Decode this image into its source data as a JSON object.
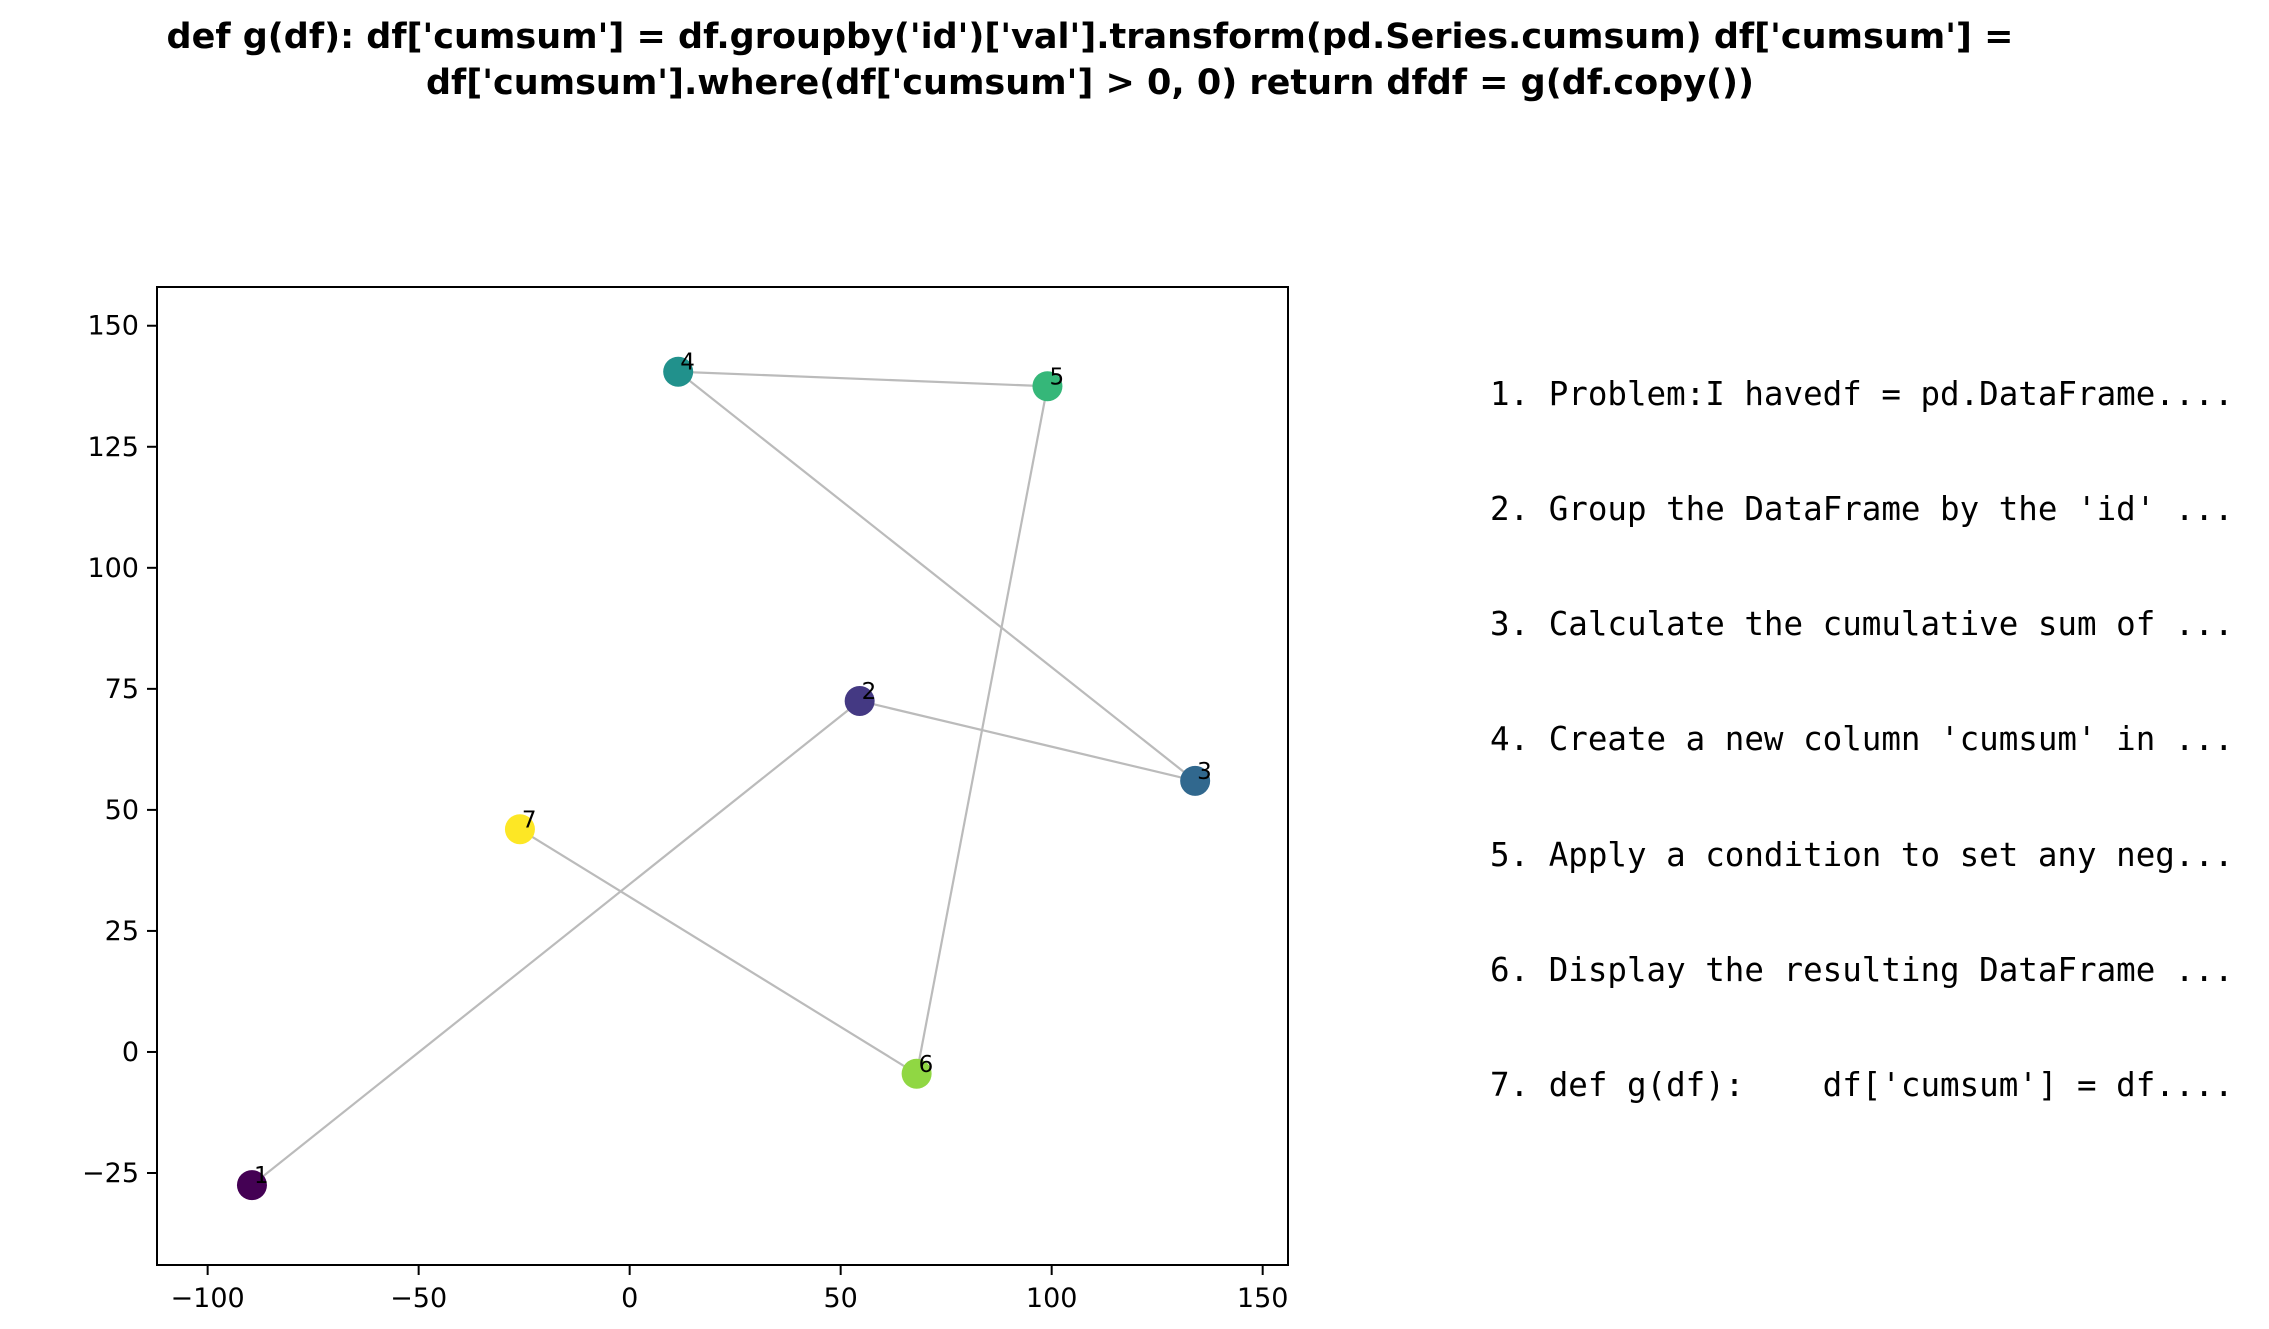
{
  "title": "def g(df):    df['cumsum'] = df.groupby('id')['val'].transform(pd.Series.cumsum)    df['cumsum'] =\ndf['cumsum'].where(df['cumsum'] > 0, 0)    return dfdf = g(df.copy())",
  "steps": [
    "1. Problem:I havedf = pd.DataFrame....",
    "2. Group the DataFrame by the 'id' ...",
    "3. Calculate the cumulative sum of ...",
    "4. Create a new column 'cumsum' in ...",
    "5. Apply a condition to set any neg...",
    "6. Display the resulting DataFrame ...",
    "7. def g(df):    df['cumsum'] = df...."
  ],
  "chart_data": {
    "type": "scatter",
    "title": "",
    "xlabel": "",
    "ylabel": "",
    "xlim": [
      -112,
      156
    ],
    "ylim": [
      -44,
      158
    ],
    "xticks": [
      -100,
      -50,
      0,
      50,
      100,
      150
    ],
    "yticks": [
      -25,
      0,
      25,
      50,
      75,
      100,
      125,
      150
    ],
    "xtick_labels": [
      "−100",
      "−50",
      "0",
      "50",
      "100",
      "150"
    ],
    "ytick_labels": [
      "−25",
      "0",
      "25",
      "50",
      "75",
      "100",
      "125",
      "150"
    ],
    "grid": false,
    "colormap": "viridis",
    "line_color": "#bbbbbb",
    "points": [
      {
        "label": "1",
        "x": -89.5,
        "y": -27.5,
        "color": "#440154"
      },
      {
        "label": "2",
        "x": 54.5,
        "y": 72.5,
        "color": "#443983"
      },
      {
        "label": "3",
        "x": 134,
        "y": 56,
        "color": "#31688e"
      },
      {
        "label": "4",
        "x": 11.5,
        "y": 140.5,
        "color": "#21918c"
      },
      {
        "label": "5",
        "x": 99,
        "y": 137.5,
        "color": "#35b779"
      },
      {
        "label": "6",
        "x": 68,
        "y": -4.5,
        "color": "#90d743"
      },
      {
        "label": "7",
        "x": -26,
        "y": 46,
        "color": "#fde725"
      }
    ]
  }
}
